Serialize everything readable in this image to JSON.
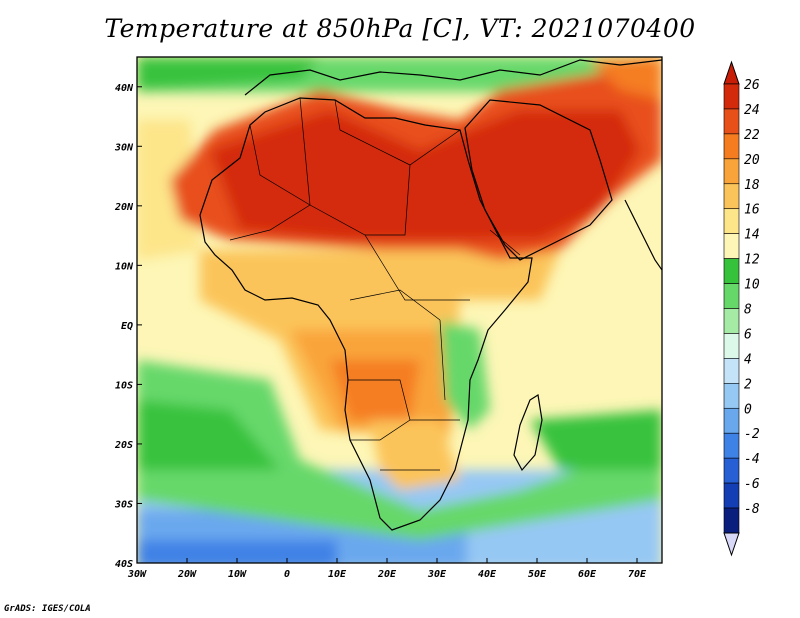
{
  "title": "Temperature at 850hPa [C], VT: 2021070400",
  "credit": "GrADS: IGES/COLA",
  "map": {
    "lon_range": [
      -30,
      75
    ],
    "lat_range": [
      -40,
      45
    ],
    "lon_ticks": [
      {
        "value": -30,
        "label": "30W"
      },
      {
        "value": -20,
        "label": "20W"
      },
      {
        "value": -10,
        "label": "10W"
      },
      {
        "value": 0,
        "label": "0"
      },
      {
        "value": 10,
        "label": "10E"
      },
      {
        "value": 20,
        "label": "20E"
      },
      {
        "value": 30,
        "label": "30E"
      },
      {
        "value": 40,
        "label": "40E"
      },
      {
        "value": 50,
        "label": "50E"
      },
      {
        "value": 60,
        "label": "60E"
      },
      {
        "value": 70,
        "label": "70E"
      }
    ],
    "lat_ticks": [
      {
        "value": 40,
        "label": "40N"
      },
      {
        "value": 30,
        "label": "30N"
      },
      {
        "value": 20,
        "label": "20N"
      },
      {
        "value": 10,
        "label": "10N"
      },
      {
        "value": 0,
        "label": "EQ"
      },
      {
        "value": -10,
        "label": "10S"
      },
      {
        "value": -20,
        "label": "20S"
      },
      {
        "value": -30,
        "label": "30S"
      },
      {
        "value": -40,
        "label": "40S"
      }
    ]
  },
  "colorbar": {
    "levels": [
      {
        "label": "26",
        "color": "#d42a0c"
      },
      {
        "label": "24",
        "color": "#e8501a"
      },
      {
        "label": "22",
        "color": "#f57d20"
      },
      {
        "label": "20",
        "color": "#f9a43a"
      },
      {
        "label": "18",
        "color": "#fbc45a"
      },
      {
        "label": "16",
        "color": "#fde58a"
      },
      {
        "label": "14",
        "color": "#fdf6b6"
      },
      {
        "label": "12",
        "color": "#37c23c"
      },
      {
        "label": "10",
        "color": "#66d86a"
      },
      {
        "label": "8",
        "color": "#a5eba6"
      },
      {
        "label": "6",
        "color": "#dcf8e8"
      },
      {
        "label": "4",
        "color": "#c4e3f8"
      },
      {
        "label": "2",
        "color": "#96c8f4"
      },
      {
        "label": "0",
        "color": "#6aa8ee"
      },
      {
        "label": "-2",
        "color": "#3f82e6"
      },
      {
        "label": "-4",
        "color": "#2660d4"
      },
      {
        "label": "-6",
        "color": "#143eb4"
      },
      {
        "label": "-8",
        "color": "#0a1e7e"
      }
    ],
    "top_cap_color": "#c81e08",
    "bottom_cap_color": "#d8d8f8"
  }
}
